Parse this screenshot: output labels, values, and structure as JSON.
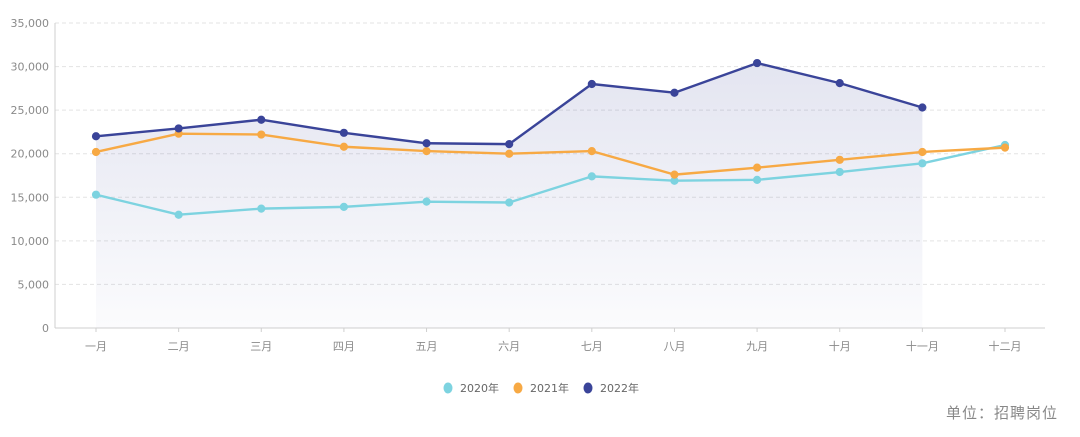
{
  "unit_note": "单位：招聘岗位",
  "chart_data": {
    "type": "line",
    "categories": [
      "一月",
      "二月",
      "三月",
      "四月",
      "五月",
      "六月",
      "七月",
      "八月",
      "九月",
      "十月",
      "十一月",
      "十二月"
    ],
    "ylim": [
      0,
      35000
    ],
    "yticks": [
      0,
      5000,
      10000,
      15000,
      20000,
      25000,
      30000,
      35000
    ],
    "ytick_labels": [
      "0",
      "5,000",
      "10,000",
      "15,000",
      "20,000",
      "25,000",
      "30,000",
      "35,000"
    ],
    "grid": true,
    "legend_position": "bottom-center",
    "series": [
      {
        "name": "2020年",
        "color": "#7dd3e0",
        "values": [
          15300,
          13000,
          13700,
          13900,
          14500,
          14400,
          17400,
          16900,
          17000,
          17900,
          18900,
          21000
        ]
      },
      {
        "name": "2021年",
        "color": "#f7a944",
        "values": [
          20200,
          22300,
          22200,
          20800,
          20300,
          20000,
          20300,
          17600,
          18400,
          19300,
          20200,
          20700
        ]
      },
      {
        "name": "2022年",
        "color": "#3a4499",
        "values": [
          22000,
          22900,
          23900,
          22400,
          21200,
          21100,
          28000,
          27000,
          30400,
          28100,
          25300,
          null
        ]
      }
    ]
  }
}
